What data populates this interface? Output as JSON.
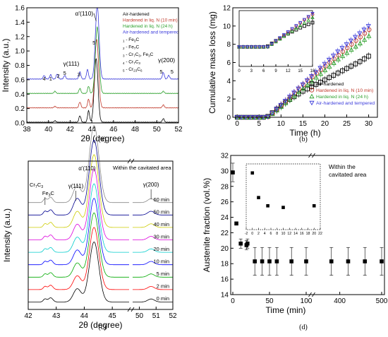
{
  "chart_data": [
    {
      "panel_label": "(a)",
      "type": "line",
      "xlabel": "2θ (degree)",
      "ylabel": "Intensity (a.u.)",
      "xlim": [
        38,
        52
      ],
      "ylim": [
        0,
        1.6
      ],
      "x_ticks": [
        "38",
        "40",
        "42",
        "44",
        "46",
        "48",
        "50",
        "52"
      ],
      "y_ticks": [
        "0.0",
        "0.2",
        "0.4",
        "0.6",
        "0.8",
        "1.0",
        "1.2",
        "1.4",
        "1.6"
      ],
      "legend_position": "top-right",
      "legend": [
        "Air-hardened",
        "Hardened in liq. N (10 min)",
        "Hardened in liq. N (24 h)",
        "Air-hardened and tempered"
      ],
      "phase_key": [
        "1 - Fe3C",
        "2 - Fe7C",
        "3 - Cr7C3, Fe3C",
        "4 - Cr7C3",
        "5 - Cr23C6"
      ],
      "peak_labels": [
        "α'(110)",
        "γ(111)",
        "γ(200)"
      ],
      "peak_numbers": [
        "4",
        "1",
        "2",
        "5",
        "3",
        "5",
        "5",
        "5"
      ],
      "series": [
        {
          "name": "Air-hardened",
          "color": "#000000",
          "offset": 0.0,
          "peaks": [
            [
              40.6,
              0.02
            ],
            [
              42.9,
              0.09
            ],
            [
              43.7,
              0.16
            ],
            [
              44.4,
              0.88
            ],
            [
              50.6,
              0.05
            ]
          ]
        },
        {
          "name": "Hardened in liq. N (10 min)",
          "color": "#c0392b",
          "offset": 0.2,
          "peaks": [
            [
              40.6,
              0.02
            ],
            [
              42.9,
              0.08
            ],
            [
              43.7,
              0.12
            ],
            [
              44.45,
              0.95
            ],
            [
              50.6,
              0.04
            ]
          ]
        },
        {
          "name": "Hardened in liq. N (24 h)",
          "color": "#2ca02c",
          "offset": 0.4,
          "peaks": [
            [
              40.6,
              0.03
            ],
            [
              42.9,
              0.07
            ],
            [
              43.7,
              0.1
            ],
            [
              44.5,
              0.92
            ],
            [
              50.6,
              0.03
            ]
          ]
        },
        {
          "name": "Air-hardened and tempered",
          "color": "#3b3bdb",
          "offset": 0.6,
          "peaks": [
            [
              39.6,
              0.05
            ],
            [
              40.2,
              0.06
            ],
            [
              40.8,
              0.07
            ],
            [
              41.5,
              0.05
            ],
            [
              42.9,
              0.1
            ],
            [
              43.6,
              0.13
            ],
            [
              44.5,
              1.02
            ],
            [
              50.6,
              0.09
            ],
            [
              51.1,
              0.05
            ]
          ]
        }
      ]
    },
    {
      "panel_label": "(b)",
      "type": "scatter",
      "xlabel": "Time (h)",
      "ylabel": "Cumulative mass loss (mg)",
      "xlim": [
        0,
        32
      ],
      "ylim": [
        0,
        12
      ],
      "x_ticks": [
        "0",
        "5",
        "10",
        "15",
        "20",
        "25",
        "30"
      ],
      "y_ticks": [
        "0",
        "2",
        "4",
        "6",
        "8",
        "10",
        "12"
      ],
      "legend_position": "bottom-right",
      "x": [
        0,
        1,
        2,
        3,
        4,
        5,
        6,
        7,
        8,
        9,
        10,
        11,
        12,
        13,
        14,
        15,
        16,
        17,
        18,
        19,
        20,
        21,
        22,
        23,
        24,
        25,
        26,
        27,
        28,
        29,
        30
      ],
      "series": [
        {
          "name": "Air-hardened",
          "color": "#000000",
          "marker": "square",
          "values": [
            0,
            0,
            0,
            0,
            0,
            0,
            0,
            0.1,
            0.5,
            0.9,
            1.25,
            1.6,
            1.95,
            2.25,
            2.55,
            2.85,
            3.1,
            3.35,
            3.6,
            3.85,
            4.1,
            4.35,
            4.6,
            4.85,
            5.1,
            5.35,
            5.6,
            5.85,
            6.1,
            6.4,
            6.7
          ]
        },
        {
          "name": "Hardened in liq. N (10 min)",
          "color": "#c0392b",
          "marker": "circle",
          "values": [
            0,
            0,
            0,
            0,
            0,
            0,
            0,
            0.05,
            0.4,
            0.85,
            1.3,
            1.75,
            2.2,
            2.65,
            3.1,
            3.55,
            4.0,
            4.4,
            4.8,
            5.2,
            5.6,
            6.0,
            6.4,
            6.8,
            7.2,
            7.6,
            8.0,
            8.4,
            8.8,
            9.2,
            9.6
          ]
        },
        {
          "name": "Hardened in liq. N (24 h)",
          "color": "#2ca02c",
          "marker": "triangle-up",
          "values": [
            0,
            0,
            0,
            0,
            0,
            0,
            0,
            0.05,
            0.35,
            0.75,
            1.15,
            1.55,
            1.95,
            2.35,
            2.75,
            3.15,
            3.55,
            3.95,
            4.35,
            4.75,
            5.15,
            5.55,
            5.95,
            6.35,
            6.7,
            7.05,
            7.4,
            7.75,
            8.1,
            8.5,
            8.9
          ]
        },
        {
          "name": "Air-hardened and tempered",
          "color": "#3b3bdb",
          "marker": "triangle-down",
          "values": [
            0,
            0,
            0,
            0,
            0,
            0,
            0,
            0.05,
            0.45,
            0.9,
            1.35,
            1.8,
            2.25,
            2.7,
            3.15,
            3.6,
            4.05,
            4.5,
            4.95,
            5.4,
            5.85,
            6.3,
            6.75,
            7.2,
            7.6,
            8.0,
            8.4,
            8.8,
            9.2,
            9.6,
            10.0
          ]
        }
      ],
      "inset": {
        "xlim": [
          0,
          18
        ],
        "x_ticks": [
          "0",
          "3",
          "6",
          "9",
          "12",
          "15",
          "18"
        ]
      }
    },
    {
      "panel_label": "(c)",
      "type": "line",
      "title": "Within the cavitated area",
      "xlabel": "2θ (degree)",
      "ylabel": "Intensity (a.u.)",
      "xlim": [
        42,
        52
      ],
      "axis_break": [
        45.6,
        49.6
      ],
      "x_ticks": [
        "42",
        "43",
        "44",
        "45",
        "50",
        "51",
        "52"
      ],
      "peak_labels": [
        "α'(110)",
        "γ(111)",
        "Cr7C3",
        "Fe3C",
        "γ(200)"
      ],
      "series": [
        {
          "name": "0 min",
          "color": "#000000",
          "height": 0.72
        },
        {
          "name": "2 min",
          "color": "#ff0000",
          "height": 0.75
        },
        {
          "name": "5 min",
          "color": "#00aa00",
          "height": 0.78
        },
        {
          "name": "10 min",
          "color": "#0000ff",
          "height": 0.8
        },
        {
          "name": "20 min",
          "color": "#00cccc",
          "height": 0.82
        },
        {
          "name": "30 min",
          "color": "#dd00dd",
          "height": 0.84
        },
        {
          "name": "40 min",
          "color": "#cccc00",
          "height": 0.85
        },
        {
          "name": "50 min",
          "color": "#000090",
          "height": 0.86
        },
        {
          "name": "60 min",
          "color": "#888888",
          "height": 0.88
        }
      ]
    },
    {
      "panel_label": "(d)",
      "type": "scatter",
      "title": "Within the cavitated area",
      "xlabel": "Time (min)",
      "ylabel": "Austenite fraction (vol.%)",
      "ylim": [
        14,
        32
      ],
      "axis_break": [
        100,
        340
      ],
      "x_ticks": [
        "0",
        "50",
        "100",
        "400",
        "500"
      ],
      "y_ticks": [
        "14",
        "16",
        "18",
        "20",
        "22",
        "24",
        "26",
        "28",
        "30",
        "32"
      ],
      "x": [
        0,
        2,
        5,
        10,
        20,
        30,
        40,
        50,
        60,
        80,
        100,
        380,
        420,
        460,
        500
      ],
      "values": [
        29.8,
        23.2,
        20.6,
        20.4,
        20.6,
        18.3,
        18.3,
        18.3,
        18.3,
        18.3,
        18.3,
        18.3,
        18.3,
        18.3,
        18.3
      ],
      "errors": [
        1.2,
        0,
        0.6,
        0.6,
        0.6,
        1.8,
        1.8,
        1.8,
        1.8,
        1.8,
        1.8,
        1.8,
        1.8,
        1.8,
        1.8
      ],
      "inset": {
        "x": [
          0,
          2,
          5,
          10,
          20
        ],
        "values": [
          30.9,
          27.9,
          26.9,
          26.7,
          26.9
        ],
        "xlim": [
          -2,
          22
        ],
        "x_ticks": [
          "-2",
          "0",
          "2",
          "4",
          "6",
          "8",
          "10",
          "12",
          "14",
          "16",
          "18",
          "20",
          "22"
        ]
      }
    }
  ]
}
